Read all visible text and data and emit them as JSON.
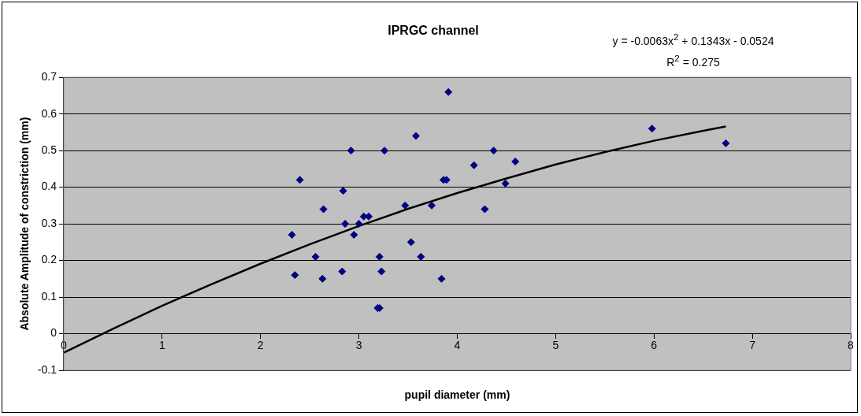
{
  "chart_data": {
    "type": "scatter",
    "title": "IPRGC channel",
    "xlabel": "pupil diameter (mm)",
    "ylabel": "Absolute Amplitude of constriction (mm)",
    "annotations": [
      "y = -0.0063x$^{2}$ + 0.1343x - 0.0524",
      "R$^{2}$ = 0.275"
    ],
    "xlim": [
      0,
      8
    ],
    "xticks": [
      0,
      1,
      2,
      3,
      4,
      5,
      6,
      7,
      8
    ],
    "ylim": [
      -0.1,
      0.7
    ],
    "yticks": [
      -0.1,
      0,
      0.1,
      0.2,
      0.3,
      0.4,
      0.5,
      0.6,
      0.7
    ],
    "grid": "y",
    "legend": false,
    "marker": "diamond",
    "series": [
      {
        "color": "#000080",
        "x": [
          2.32,
          2.35,
          2.4,
          2.56,
          2.63,
          2.64,
          2.83,
          2.84,
          2.86,
          2.92,
          2.95,
          3.0,
          3.05,
          3.1,
          3.19,
          3.21,
          3.21,
          3.23,
          3.26,
          3.47,
          3.53,
          3.58,
          3.63,
          3.74,
          3.84,
          3.86,
          3.89,
          3.91,
          4.17,
          4.28,
          4.37,
          4.49,
          4.59,
          5.98,
          6.73
        ],
        "values": [
          0.27,
          0.16,
          0.42,
          0.21,
          0.15,
          0.34,
          0.17,
          0.39,
          0.3,
          0.5,
          0.27,
          0.3,
          0.32,
          0.32,
          0.07,
          0.07,
          0.21,
          0.17,
          0.5,
          0.35,
          0.25,
          0.54,
          0.21,
          0.35,
          0.15,
          0.42,
          0.42,
          0.66,
          0.46,
          0.34,
          0.5,
          0.41,
          0.47,
          0.56,
          0.52
        ]
      },
      {
        "type": "line",
        "color": "#000000",
        "marker": "none",
        "line_style": "solid",
        "x": [
          0,
          0.5,
          1,
          1.5,
          2,
          2.5,
          3,
          3.5,
          4,
          4.5,
          5,
          5.5,
          6,
          6.5,
          6.73
        ],
        "values": [
          -0.052,
          0.013,
          0.076,
          0.135,
          0.191,
          0.244,
          0.294,
          0.341,
          0.384,
          0.424,
          0.462,
          0.496,
          0.527,
          0.554,
          0.566
        ]
      }
    ]
  }
}
